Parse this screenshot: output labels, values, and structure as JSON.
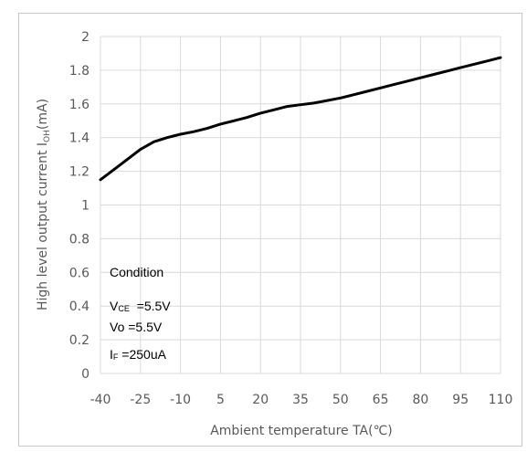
{
  "chart_data": {
    "type": "line",
    "xlabel": "Ambient temperature TA(℃)",
    "ylabel": {
      "prefix": "High level output current I",
      "sub": "OH",
      "suffix": "(mA)"
    },
    "xlim": [
      -40,
      110
    ],
    "ylim": [
      0,
      2
    ],
    "x_ticks": [
      -40,
      -25,
      -10,
      5,
      20,
      35,
      50,
      65,
      80,
      95,
      110
    ],
    "y_ticks": [
      0,
      0.2,
      0.4,
      0.6,
      0.8,
      1,
      1.2,
      1.4,
      1.6,
      1.8,
      2
    ],
    "grid": true,
    "series": [
      {
        "color": "#000000",
        "x": [
          -40,
          -35,
          -30,
          -25,
          -20,
          -15,
          -10,
          -5,
          0,
          5,
          10,
          15,
          20,
          25,
          30,
          35,
          40,
          45,
          50,
          55,
          60,
          65,
          70,
          75,
          80,
          85,
          90,
          95,
          100,
          105,
          110
        ],
        "y": [
          1.15,
          1.21,
          1.27,
          1.33,
          1.375,
          1.4,
          1.42,
          1.435,
          1.455,
          1.48,
          1.5,
          1.52,
          1.545,
          1.565,
          1.585,
          1.595,
          1.605,
          1.62,
          1.635,
          1.655,
          1.675,
          1.695,
          1.715,
          1.735,
          1.755,
          1.775,
          1.795,
          1.815,
          1.835,
          1.855,
          1.875
        ]
      }
    ],
    "condition": {
      "title": "Condition",
      "lines": [
        {
          "main": "V",
          "sub": "CE",
          "rest": "  =5.5V"
        },
        {
          "main": "Vo =5.5V",
          "sub": "",
          "rest": ""
        },
        {
          "main": "I",
          "sub": "F",
          "rest": " =250uA"
        }
      ]
    }
  }
}
